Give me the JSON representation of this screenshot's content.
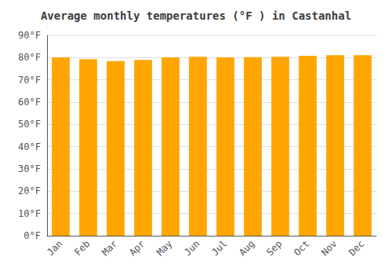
{
  "chart_data": {
    "type": "bar",
    "title": "Average monthly temperatures (°F ) in Castanhal",
    "categories": [
      "Jan",
      "Feb",
      "Mar",
      "Apr",
      "May",
      "Jun",
      "Jul",
      "Aug",
      "Sep",
      "Oct",
      "Nov",
      "Dec"
    ],
    "values": [
      80.1,
      79.3,
      78.4,
      79.0,
      80.1,
      80.4,
      80.1,
      80.2,
      80.4,
      80.8,
      81.1,
      81.1
    ],
    "color": "#FFA500",
    "ylim": [
      0,
      90
    ],
    "yticks": [
      {
        "value": 0,
        "label": "0°F"
      },
      {
        "value": 10,
        "label": "10°F"
      },
      {
        "value": 20,
        "label": "20°F"
      },
      {
        "value": 30,
        "label": "30°F"
      },
      {
        "value": 40,
        "label": "40°F"
      },
      {
        "value": 50,
        "label": "50°F"
      },
      {
        "value": 60,
        "label": "60°F"
      },
      {
        "value": 70,
        "label": "70°F"
      },
      {
        "value": 80,
        "label": "80°F"
      },
      {
        "value": 90,
        "label": "90°F"
      }
    ],
    "grid": true
  }
}
